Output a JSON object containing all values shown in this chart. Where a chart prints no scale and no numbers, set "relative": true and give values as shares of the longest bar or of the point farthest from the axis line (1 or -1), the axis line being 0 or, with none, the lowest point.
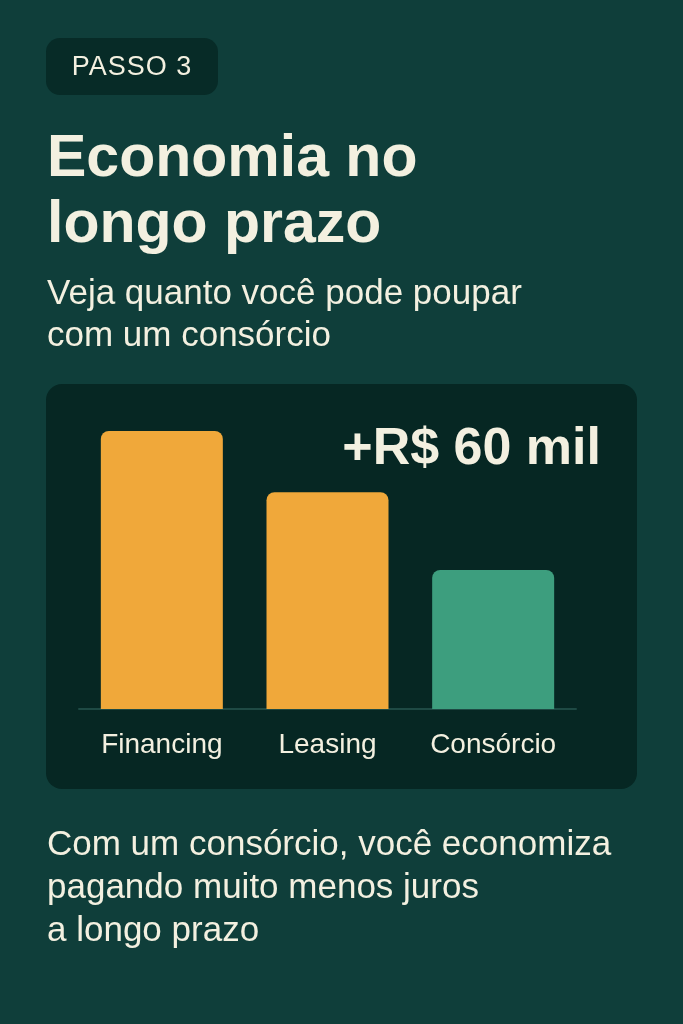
{
  "chart_data": {
    "type": "bar",
    "title": "Economia no longo prazo",
    "subtitle": "Veja quanto você pode poupar com um consórcio",
    "categories": [
      "Financing",
      "Leasing",
      "Consórcio"
    ],
    "values": [
      1,
      0.78,
      0.5
    ],
    "colors": [
      "#f0a83a",
      "#f0a83a",
      "#3d9e7e"
    ],
    "relative": true,
    "annotations": [
      "PASSO 3",
      "+R$ 60 mil",
      "Com um consórcio, você economiza\npagando muito menos juros\na longo prazo"
    ]
  }
}
